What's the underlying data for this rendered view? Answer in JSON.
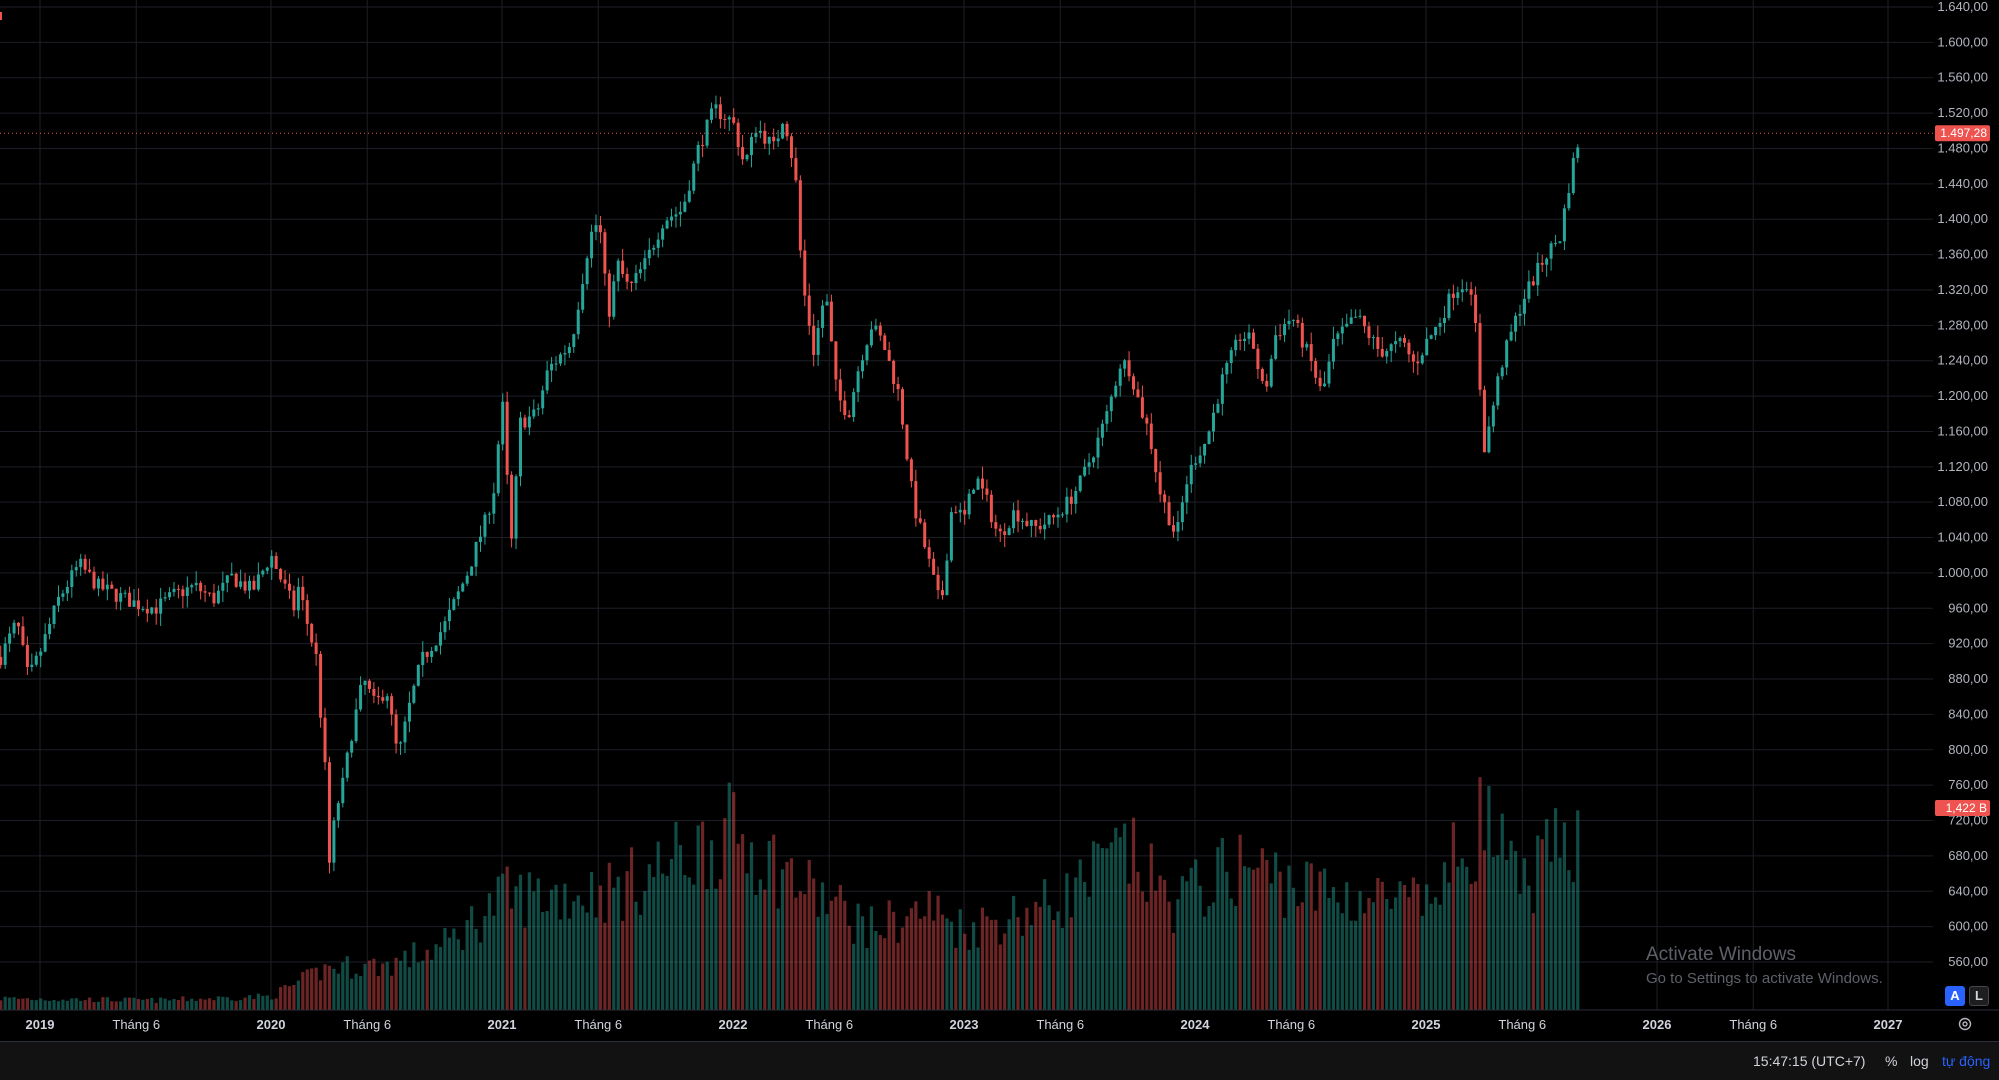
{
  "chart_data": {
    "type": "candlestick",
    "y_axis": {
      "ticks": [
        "1.640,00",
        "1.600,00",
        "1.560,00",
        "1.520,00",
        "1.480,00",
        "1.440,00",
        "1.400,00",
        "1.360,00",
        "1.320,00",
        "1.280,00",
        "1.240,00",
        "1.200,00",
        "1.160,00",
        "1.120,00",
        "1.080,00",
        "1.040,00",
        "1.000,00",
        "960,00",
        "920,00",
        "880,00",
        "840,00",
        "800,00",
        "760,00",
        "720,00",
        "680,00",
        "640,00",
        "600,00",
        "560,00"
      ],
      "range": [
        540,
        1645
      ]
    },
    "x_axis": {
      "ticks": [
        {
          "label": "2019",
          "year": true,
          "date": 2019.0
        },
        {
          "label": "Tháng 6",
          "year": false,
          "date": 2019.4167
        },
        {
          "label": "2020",
          "year": true,
          "date": 2020.0
        },
        {
          "label": "Tháng 6",
          "year": false,
          "date": 2020.4167
        },
        {
          "label": "2021",
          "year": true,
          "date": 2021.0
        },
        {
          "label": "Tháng 6",
          "year": false,
          "date": 2021.4167
        },
        {
          "label": "2022",
          "year": true,
          "date": 2022.0
        },
        {
          "label": "Tháng 6",
          "year": false,
          "date": 2022.4167
        },
        {
          "label": "2023",
          "year": true,
          "date": 2023.0
        },
        {
          "label": "Tháng 6",
          "year": false,
          "date": 2023.4167
        },
        {
          "label": "2024",
          "year": true,
          "date": 2024.0
        },
        {
          "label": "Tháng 6",
          "year": false,
          "date": 2024.4167
        },
        {
          "label": "2025",
          "year": true,
          "date": 2025.0
        },
        {
          "label": "Tháng 6",
          "year": false,
          "date": 2025.4167
        },
        {
          "label": "2026",
          "year": true,
          "date": 2026.0
        },
        {
          "label": "Tháng 6",
          "year": false,
          "date": 2026.4167
        },
        {
          "label": "2027",
          "year": true,
          "date": 2027.0
        }
      ]
    },
    "price_path": [
      [
        2018.83,
        905
      ],
      [
        2018.9,
        945
      ],
      [
        2018.95,
        880
      ],
      [
        2019.0,
        910
      ],
      [
        2019.08,
        970
      ],
      [
        2019.17,
        1010
      ],
      [
        2019.25,
        985
      ],
      [
        2019.33,
        975
      ],
      [
        2019.42,
        965
      ],
      [
        2019.5,
        960
      ],
      [
        2019.58,
        975
      ],
      [
        2019.67,
        985
      ],
      [
        2019.75,
        970
      ],
      [
        2019.83,
        995
      ],
      [
        2019.92,
        980
      ],
      [
        2020.0,
        1020
      ],
      [
        2020.04,
        995
      ],
      [
        2020.1,
        960
      ],
      [
        2020.12,
        985
      ],
      [
        2020.16,
        940
      ],
      [
        2020.2,
        900
      ],
      [
        2020.22,
        820
      ],
      [
        2020.24,
        760
      ],
      [
        2020.25,
        665
      ],
      [
        2020.28,
        730
      ],
      [
        2020.31,
        760
      ],
      [
        2020.35,
        820
      ],
      [
        2020.4,
        880
      ],
      [
        2020.45,
        850
      ],
      [
        2020.5,
        870
      ],
      [
        2020.55,
        790
      ],
      [
        2020.6,
        850
      ],
      [
        2020.65,
        900
      ],
      [
        2020.75,
        940
      ],
      [
        2020.85,
        1000
      ],
      [
        2020.93,
        1060
      ],
      [
        2020.97,
        1100
      ],
      [
        2021.0,
        1200
      ],
      [
        2021.04,
        1030
      ],
      [
        2021.08,
        1170
      ],
      [
        2021.15,
        1180
      ],
      [
        2021.2,
        1230
      ],
      [
        2021.3,
        1260
      ],
      [
        2021.38,
        1380
      ],
      [
        2021.42,
        1400
      ],
      [
        2021.46,
        1290
      ],
      [
        2021.5,
        1350
      ],
      [
        2021.55,
        1320
      ],
      [
        2021.62,
        1350
      ],
      [
        2021.7,
        1400
      ],
      [
        2021.78,
        1410
      ],
      [
        2021.85,
        1480
      ],
      [
        2021.92,
        1525
      ],
      [
        2022.0,
        1510
      ],
      [
        2022.05,
        1460
      ],
      [
        2022.1,
        1505
      ],
      [
        2022.18,
        1480
      ],
      [
        2022.22,
        1520
      ],
      [
        2022.27,
        1450
      ],
      [
        2022.3,
        1330
      ],
      [
        2022.35,
        1250
      ],
      [
        2022.4,
        1320
      ],
      [
        2022.45,
        1200
      ],
      [
        2022.5,
        1180
      ],
      [
        2022.55,
        1240
      ],
      [
        2022.6,
        1280
      ],
      [
        2022.65,
        1260
      ],
      [
        2022.72,
        1200
      ],
      [
        2022.78,
        1080
      ],
      [
        2022.85,
        1010
      ],
      [
        2022.9,
        960
      ],
      [
        2022.95,
        1080
      ],
      [
        2023.0,
        1060
      ],
      [
        2023.05,
        1110
      ],
      [
        2023.1,
        1080
      ],
      [
        2023.15,
        1040
      ],
      [
        2023.22,
        1070
      ],
      [
        2023.3,
        1050
      ],
      [
        2023.38,
        1060
      ],
      [
        2023.45,
        1080
      ],
      [
        2023.5,
        1100
      ],
      [
        2023.58,
        1150
      ],
      [
        2023.62,
        1180
      ],
      [
        2023.68,
        1240
      ],
      [
        2023.72,
        1230
      ],
      [
        2023.76,
        1190
      ],
      [
        2023.8,
        1160
      ],
      [
        2023.85,
        1090
      ],
      [
        2023.92,
        1040
      ],
      [
        2023.96,
        1100
      ],
      [
        2024.0,
        1130
      ],
      [
        2024.05,
        1150
      ],
      [
        2024.12,
        1220
      ],
      [
        2024.2,
        1270
      ],
      [
        2024.25,
        1260
      ],
      [
        2024.3,
        1200
      ],
      [
        2024.35,
        1270
      ],
      [
        2024.42,
        1290
      ],
      [
        2024.5,
        1240
      ],
      [
        2024.55,
        1200
      ],
      [
        2024.6,
        1260
      ],
      [
        2024.7,
        1290
      ],
      [
        2024.8,
        1250
      ],
      [
        2024.9,
        1260
      ],
      [
        2024.95,
        1235
      ],
      [
        2025.0,
        1260
      ],
      [
        2025.05,
        1280
      ],
      [
        2025.12,
        1320
      ],
      [
        2025.18,
        1330
      ],
      [
        2025.22,
        1270
      ],
      [
        2025.25,
        1140
      ],
      [
        2025.27,
        1160
      ],
      [
        2025.32,
        1230
      ],
      [
        2025.38,
        1280
      ],
      [
        2025.42,
        1310
      ],
      [
        2025.48,
        1340
      ],
      [
        2025.52,
        1360
      ],
      [
        2025.58,
        1380
      ],
      [
        2025.62,
        1440
      ],
      [
        2025.65,
        1480
      ],
      [
        2025.67,
        1497.28
      ]
    ],
    "last_price_label": "1.497,28",
    "last_price": 1497.28,
    "last_volume_label": "1,422 B",
    "volume_envelope": [
      [
        2018.83,
        0.06
      ],
      [
        2019.5,
        0.05
      ],
      [
        2020.0,
        0.07
      ],
      [
        2020.25,
        0.22
      ],
      [
        2020.5,
        0.23
      ],
      [
        2020.75,
        0.33
      ],
      [
        2021.0,
        0.58
      ],
      [
        2021.5,
        0.62
      ],
      [
        2022.0,
        0.92
      ],
      [
        2022.3,
        0.64
      ],
      [
        2022.6,
        0.42
      ],
      [
        2022.85,
        0.52
      ],
      [
        2023.0,
        0.42
      ],
      [
        2023.4,
        0.55
      ],
      [
        2023.7,
        0.82
      ],
      [
        2023.9,
        0.55
      ],
      [
        2024.2,
        0.75
      ],
      [
        2024.5,
        0.62
      ],
      [
        2025.0,
        0.53
      ],
      [
        2025.25,
        1.0
      ],
      [
        2025.4,
        0.62
      ],
      [
        2025.67,
        0.95
      ]
    ],
    "up_color": "#26a69a",
    "down_color": "#ef5350",
    "grid": true
  },
  "watermark": {
    "title": "Activate Windows",
    "subtitle": "Go to Settings to activate Windows."
  },
  "status_bar": {
    "time": "15:47:15 (UTC+7)",
    "percent": "%",
    "log": "log",
    "auto": "tự động"
  },
  "scale_buttons": {
    "a": "A",
    "l": "L"
  },
  "icons": {
    "settings": "gear-icon"
  }
}
